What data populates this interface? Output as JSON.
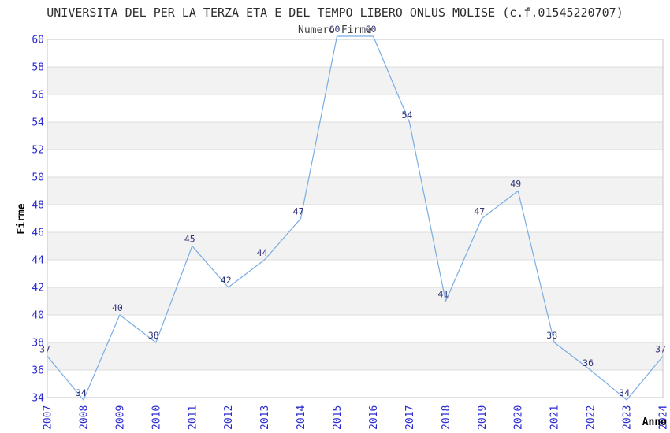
{
  "chart_data": {
    "type": "line",
    "title": "UNIVERSITA DEL PER LA TERZA ETA E DEL TEMPO LIBERO ONLUS MOLISE (c.f.01545220707)",
    "subtitle": "Numero Firme",
    "xlabel": "Anno",
    "ylabel": "Firme",
    "categories": [
      "2007",
      "2008",
      "2009",
      "2010",
      "2011",
      "2012",
      "2013",
      "2014",
      "2015",
      "2016",
      "2017",
      "2018",
      "2019",
      "2020",
      "2021",
      "2022",
      "2023",
      "2024"
    ],
    "values": [
      37,
      34,
      40,
      38,
      45,
      42,
      44,
      47,
      60,
      60,
      54,
      41,
      47,
      49,
      38,
      36,
      34,
      37
    ],
    "ylim": [
      34,
      60
    ],
    "ytick_step": 2,
    "xtick_rotation_deg": 90,
    "grid": true,
    "banded_background": true,
    "legend": null,
    "point_labels_visible": true
  },
  "colors": {
    "background": "#ffffff",
    "band": "#f2f2f2",
    "gridline": "#dcdcdc",
    "plot_border": "#c6c6c6",
    "series_line": "#79ade4",
    "axis_tick_label": "#2a2ad0",
    "point_label": "#333377",
    "title": "#2d2d2d",
    "subtitle": "#3f3f3f",
    "axis_name_label": "#000000"
  }
}
